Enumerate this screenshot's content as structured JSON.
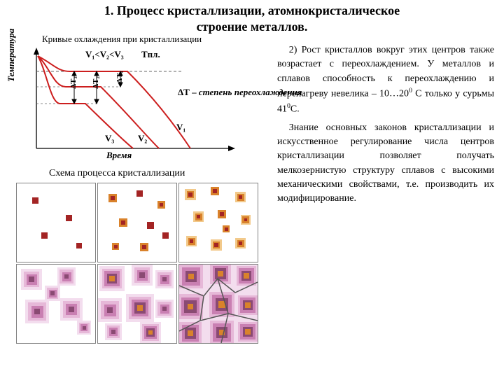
{
  "heading": "1. Процесс кристаллизации, атомнокристалическое\nстроение металлов.",
  "chart": {
    "caption": "Кривые охлаждения при кристаллизации",
    "y_axis": "Температура",
    "x_axis": "Время",
    "lines": {
      "V1": "V₁",
      "V2": "V₂",
      "V3": "V₃"
    },
    "ordering": "V₁<V₂<V₃",
    "T_right": "Tпл.",
    "dT1": "ΔT₁",
    "dT2": "ΔT₂",
    "dT3": "ΔT₃",
    "note_bold": "ΔТ – ",
    "note_ital": "степень переохлаждения",
    "colors": {
      "curve": "#cc1e1e",
      "axis": "#000000",
      "tick": "#000000",
      "dash": "#777777"
    }
  },
  "schema": {
    "caption": "Схема процесса кристаллизации",
    "colors": {
      "seed_dark": "#a32424",
      "seed_mid": "#d9822b",
      "seed_light": "#f2c98a",
      "grain_dark": "#8a4a73",
      "grain_mid": "#c97fb2",
      "grain_light": "#e6b8d8",
      "grain_pale": "#f3ddee",
      "boundary": "#555555"
    }
  },
  "paragraphs": {
    "p1": "2) Рост кристаллов вокруг этих центров также возрастает с переохлаждением. У металлов и сплавов способность к переохлаждению и перенагреву невелика – 10…20",
    "p1_sup": "0",
    "p1_tail": " С только у сурьмы 41",
    "p1_sup2": "0",
    "p1_tail2": "С.",
    "p2": "Знание основных законов кристаллизации и искусственное регулирование числа центров кристаллизации позволяет получать мелкозернистую структуру сплавов с высокими механическими свойствами, т.е. производить их модифицирование."
  }
}
